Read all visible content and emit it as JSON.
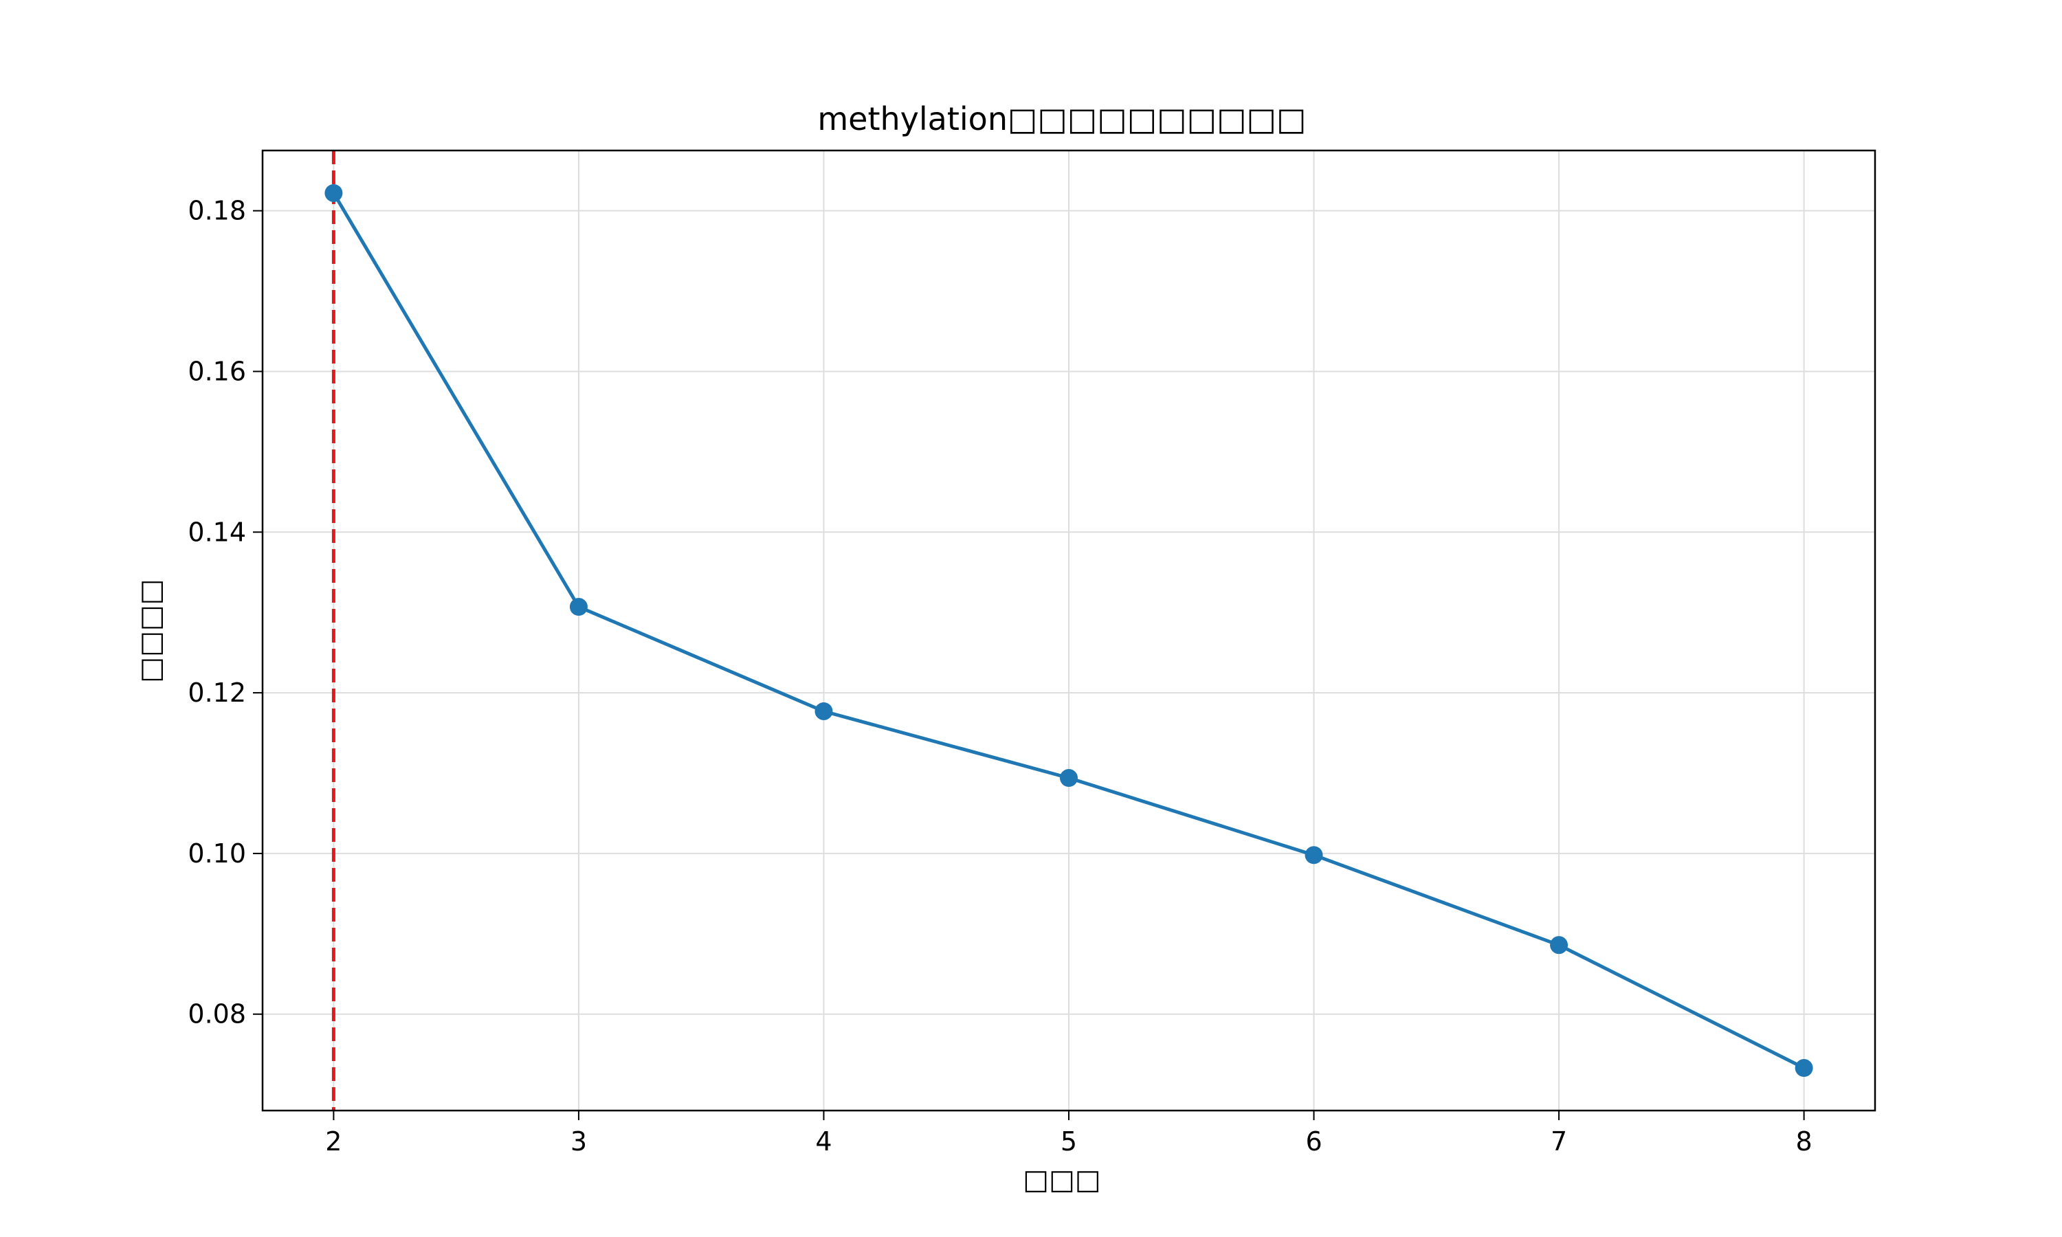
{
  "chart_data": {
    "type": "line",
    "title": "methylation□□□□□□□□□□",
    "xlabel": "□□□",
    "ylabel": "□□□□",
    "x": [
      2,
      3,
      4,
      5,
      6,
      7,
      8
    ],
    "series": [
      {
        "values": [
          0.1822,
          0.1307,
          0.1177,
          0.1094,
          0.0998,
          0.0886,
          0.0733
        ],
        "color": "#1f77b4",
        "marker": "circle"
      }
    ],
    "xticks": [
      "2",
      "3",
      "4",
      "5",
      "6",
      "7",
      "8"
    ],
    "yticks": [
      "0.08",
      "0.10",
      "0.12",
      "0.14",
      "0.16",
      "0.18"
    ],
    "xlim": [
      1.71,
      8.29
    ],
    "ylim": [
      0.068,
      0.1875
    ],
    "grid": true,
    "reference_line": {
      "x": 2,
      "color": "#e31a1c",
      "style": "dashed"
    }
  }
}
